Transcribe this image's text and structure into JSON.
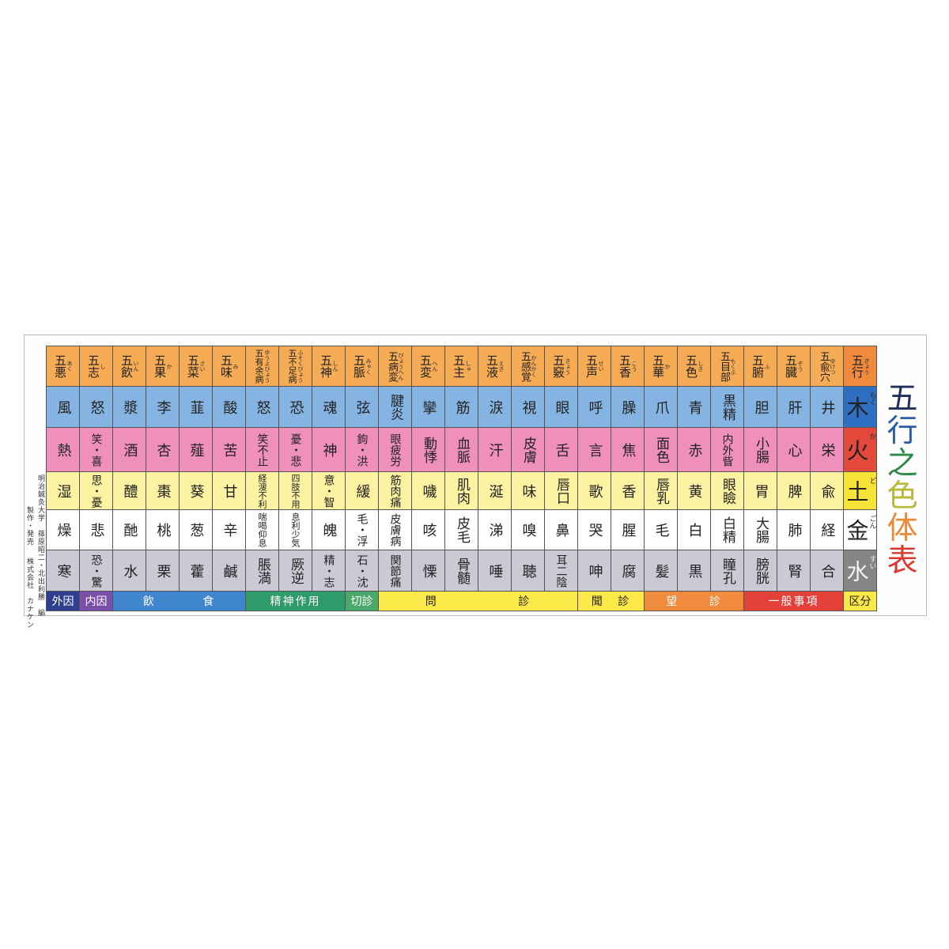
{
  "title": {
    "chars": [
      "五",
      "行",
      "之",
      "色",
      "体",
      "表"
    ],
    "colors": [
      "#1f2f5a",
      "#2a5fa8",
      "#2f8a4a",
      "#b8b83a",
      "#e88a3a",
      "#d83a30"
    ]
  },
  "credits": {
    "line1": "明治鍼灸大学　篠原昭二・北出利勝　編",
    "line2": "製作・発売",
    "line3": "株式会社　カナケン"
  },
  "colors": {
    "header": "#f6ab55",
    "header_element": "#f08a3c",
    "rows": [
      "#86b4e2",
      "#ef8fbb",
      "#fcf3a2",
      "#ffffff",
      "#cacad4"
    ],
    "elements": [
      "#2f6fc2",
      "#e2493a",
      "#f7e338",
      "#ffffff",
      "#858585"
    ]
  },
  "columns": [
    {
      "header": "五悪",
      "reading": "あく",
      "cells": [
        "風",
        "熱",
        "湿",
        "燥",
        "寒"
      ]
    },
    {
      "header": "五志",
      "reading": "し",
      "cells": [
        "怒",
        "笑・喜",
        "思・憂",
        "悲",
        "恐・驚"
      ]
    },
    {
      "header": "五飲",
      "reading": "いん",
      "cells": [
        "漿",
        "酒",
        "醴",
        "酏",
        "水"
      ]
    },
    {
      "header": "五果",
      "reading": "か",
      "cells": [
        "李",
        "杏",
        "棗",
        "桃",
        "栗"
      ]
    },
    {
      "header": "五菜",
      "reading": "さい",
      "cells": [
        "韮",
        "薤",
        "葵",
        "葱",
        "藿"
      ]
    },
    {
      "header": "五味",
      "reading": "み",
      "cells": [
        "酸",
        "苦",
        "甘",
        "辛",
        "鹹"
      ]
    },
    {
      "header": "五有余病",
      "reading": "ゆうよびょう",
      "cells": [
        "怒",
        "笑不止",
        "経溲不利",
        "喘喝仰息",
        "脹満"
      ]
    },
    {
      "header": "五不足病",
      "reading": "ふそくびょう",
      "cells": [
        "恐",
        "憂・悲",
        "四肢不用",
        "息利少気",
        "厥逆"
      ]
    },
    {
      "header": "五神",
      "reading": "しん",
      "cells": [
        "魂",
        "神",
        "意・智",
        "魄",
        "精・志"
      ]
    },
    {
      "header": "五脈",
      "reading": "みゃく",
      "cells": [
        "弦",
        "鉤・洪",
        "緩",
        "毛・浮",
        "石・沈"
      ]
    },
    {
      "header": "五病変",
      "reading": "びょうへん",
      "cells": [
        "腱炎",
        "眼疲労",
        "筋肉痛",
        "皮膚病",
        "関節痛"
      ]
    },
    {
      "header": "五変",
      "reading": "へん",
      "cells": [
        "攣",
        "動悸",
        "噦",
        "咳",
        "慄"
      ]
    },
    {
      "header": "五主",
      "reading": "しゅ",
      "cells": [
        "筋",
        "血脈",
        "肌肉",
        "皮毛",
        "骨髄"
      ]
    },
    {
      "header": "五液",
      "reading": "えき",
      "cells": [
        "涙",
        "汗",
        "涎",
        "涕",
        "唾"
      ]
    },
    {
      "header": "五感覚",
      "reading": "かんかく",
      "cells": [
        "視",
        "皮膚",
        "味",
        "嗅",
        "聴"
      ]
    },
    {
      "header": "五竅",
      "reading": "きょう",
      "cells": [
        "眼",
        "舌",
        "唇口",
        "鼻",
        "耳二陰"
      ]
    },
    {
      "header": "五声",
      "reading": "せい",
      "cells": [
        "呼",
        "言",
        "歌",
        "哭",
        "呻"
      ]
    },
    {
      "header": "五香",
      "reading": "こう",
      "cells": [
        "臊",
        "焦",
        "香",
        "腥",
        "腐"
      ]
    },
    {
      "header": "五華",
      "reading": "か",
      "cells": [
        "爪",
        "面色",
        "唇乳",
        "毛",
        "髪"
      ]
    },
    {
      "header": "五色",
      "reading": "しき",
      "cells": [
        "青",
        "赤",
        "黄",
        "白",
        "黒"
      ]
    },
    {
      "header": "五目部",
      "reading": "もくぶ",
      "cells": [
        "黒精",
        "内外眥",
        "眼瞼",
        "白精",
        "瞳孔"
      ]
    },
    {
      "header": "五腑",
      "reading": "ふ",
      "cells": [
        "胆",
        "小腸",
        "胃",
        "大腸",
        "膀胱"
      ]
    },
    {
      "header": "五臓",
      "reading": "ぞう",
      "cells": [
        "肝",
        "心",
        "脾",
        "肺",
        "腎"
      ]
    },
    {
      "header": "五兪穴",
      "reading": "ゆけつ",
      "cells": [
        "井",
        "栄",
        "兪",
        "経",
        "合"
      ]
    },
    {
      "header": "五行",
      "reading": "ぎょう",
      "cells": [
        "木",
        "火",
        "土",
        "金",
        "水"
      ],
      "readings": [
        "もく",
        "か",
        "ど",
        "ごん",
        "すい"
      ]
    }
  ],
  "footer": [
    {
      "label": [
        "外因"
      ],
      "span": 1,
      "color": "#2e3f8f",
      "text": "#ffffff"
    },
    {
      "label": [
        "内因"
      ],
      "span": 1,
      "color": "#7a4fa8",
      "text": "#ffffff"
    },
    {
      "label": [
        "飲",
        "食"
      ],
      "span": 4,
      "color": "#3f86cf",
      "text": "#ffffff"
    },
    {
      "label": [
        "精神作用"
      ],
      "span": 3,
      "color": "#2f9a6a",
      "text": "#ffffff"
    },
    {
      "label": [
        "切診"
      ],
      "span": 1,
      "color": "#4aa86a",
      "text": "#ffffff"
    },
    {
      "label": [
        "問",
        "診"
      ],
      "span": 6,
      "color": "#fbe94a",
      "text": "#222222"
    },
    {
      "label": [
        "聞",
        "診"
      ],
      "span": 2,
      "color": "#fbe94a",
      "text": "#222222"
    },
    {
      "label": [
        "望",
        "診"
      ],
      "span": 3,
      "color": "#f08a3c",
      "text": "#ffffff"
    },
    {
      "label": [
        "一般事項"
      ],
      "span": 3,
      "color": "#e4403a",
      "text": "#ffffff"
    },
    {
      "label": [
        "区分"
      ],
      "span": 1,
      "color": "#fbe94a",
      "text": "#222222"
    }
  ]
}
